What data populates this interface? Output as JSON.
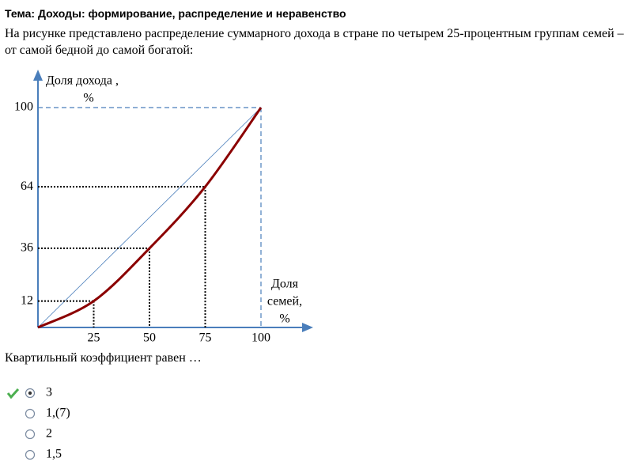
{
  "header": {
    "title": "Тема: Доходы: формирование, распределение и неравенство"
  },
  "question": {
    "text": "На рисунке представлено распределение суммарного дохода в стране по четырем 25-процентным группам семей – от самой бедной до самой богатой:",
    "prompt": "Квартильный коэффициент равен …"
  },
  "chart_data": {
    "type": "line",
    "x": [
      0,
      25,
      50,
      75,
      100
    ],
    "values": [
      0,
      12,
      36,
      64,
      100
    ],
    "color": "#8b0000",
    "xlim": [
      0,
      100
    ],
    "ylim": [
      0,
      100
    ],
    "xticks": [
      25,
      50,
      75,
      100
    ],
    "yticks": [
      12,
      36,
      64,
      100
    ],
    "ylabel_lines": [
      "Доля дохода ,",
      "%"
    ],
    "xlabel_lines": [
      "Доля",
      "семей,",
      "%"
    ]
  },
  "options": [
    {
      "label": "3",
      "selected": true
    },
    {
      "label": "1,(7)",
      "selected": false
    },
    {
      "label": "2",
      "selected": false
    },
    {
      "label": "1,5",
      "selected": false
    }
  ]
}
